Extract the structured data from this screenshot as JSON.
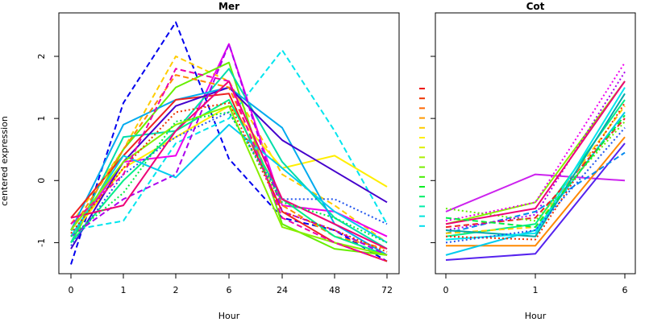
{
  "ylabel": "centered expression",
  "chart_data": [
    {
      "type": "line",
      "title": "Mer",
      "xlabel": "Hour",
      "categories": [
        "0",
        "1",
        "2",
        "6",
        "24",
        "48",
        "72"
      ],
      "yticks": [
        -1,
        0,
        1,
        2
      ],
      "ylim": [
        -1.5,
        2.7
      ],
      "grid": false,
      "series": [
        {
          "color": "#0000ee",
          "dash": "dashed",
          "values": [
            -1.35,
            1.25,
            2.55,
            0.35,
            -0.6,
            -0.8,
            -1.3
          ]
        },
        {
          "color": "#00e5ee",
          "dash": "dashed",
          "values": [
            -0.8,
            -0.65,
            0.6,
            1.0,
            2.1,
            0.8,
            -0.7
          ]
        },
        {
          "color": "#ffcc00",
          "dash": "dashed",
          "values": [
            -0.7,
            0.5,
            2.0,
            1.6,
            0.1,
            -0.4,
            -1.0
          ]
        },
        {
          "color": "#ee00ee",
          "dash": "solid",
          "values": [
            -0.9,
            0.3,
            0.4,
            2.2,
            -0.4,
            -0.5,
            -0.9
          ]
        },
        {
          "color": "#66ee00",
          "dash": "solid",
          "values": [
            -1.0,
            0.5,
            1.5,
            1.9,
            -0.7,
            -1.1,
            -1.2
          ]
        },
        {
          "color": "#ffee00",
          "dash": "solid",
          "values": [
            -0.9,
            0.2,
            0.7,
            1.2,
            0.2,
            0.4,
            -0.1
          ]
        },
        {
          "color": "#00ddaa",
          "dash": "solid",
          "values": [
            -1.0,
            0.7,
            0.8,
            1.8,
            0.3,
            -0.6,
            -1.1
          ]
        },
        {
          "color": "#00aaee",
          "dash": "solid",
          "values": [
            -0.8,
            0.9,
            1.3,
            1.5,
            0.85,
            -0.7,
            -1.2
          ]
        },
        {
          "color": "#ee2222",
          "dash": "solid",
          "values": [
            -0.6,
            0.4,
            1.3,
            1.4,
            -0.5,
            -1.0,
            -1.3
          ]
        },
        {
          "color": "#4400cc",
          "dash": "solid",
          "values": [
            -1.1,
            0.3,
            1.2,
            1.5,
            0.65,
            0.15,
            -0.35
          ]
        },
        {
          "color": "#ff8800",
          "dash": "dashed",
          "values": [
            -0.8,
            0.5,
            1.7,
            1.5,
            -0.4,
            -0.9,
            -1.1
          ]
        },
        {
          "color": "#00ee88",
          "dash": "solid",
          "values": [
            -1.0,
            0.0,
            0.8,
            1.3,
            -0.3,
            -0.9,
            -1.2
          ]
        },
        {
          "color": "#2255ee",
          "dash": "dotted",
          "values": [
            -1.05,
            0.1,
            0.7,
            1.1,
            -0.3,
            -0.3,
            -0.7
          ]
        },
        {
          "color": "#aa00ee",
          "dash": "dashed",
          "values": [
            -0.9,
            -0.3,
            0.1,
            2.2,
            -0.5,
            -0.8,
            -1.2
          ]
        },
        {
          "color": "#00ccee",
          "dash": "solid",
          "values": [
            -0.9,
            0.4,
            0.05,
            0.9,
            0.2,
            -0.5,
            -1.0
          ]
        },
        {
          "color": "#ee0077",
          "dash": "solid",
          "values": [
            -0.6,
            -0.4,
            0.8,
            1.6,
            -0.3,
            -0.7,
            -1.1
          ]
        },
        {
          "color": "#88ee00",
          "dash": "solid",
          "values": [
            -0.8,
            0.3,
            0.9,
            1.2,
            -0.75,
            -1.0,
            -1.2
          ]
        },
        {
          "color": "#ee3300",
          "dash": "dotted",
          "values": [
            -0.85,
            0.2,
            1.1,
            1.25,
            -0.5,
            -0.8,
            -1.15
          ]
        },
        {
          "color": "#ee00aa",
          "dash": "dashed",
          "values": [
            -0.7,
            0.1,
            1.8,
            1.6,
            -0.6,
            -1.0,
            -1.3
          ]
        },
        {
          "color": "#00ee44",
          "dash": "dotted",
          "values": [
            -0.9,
            -0.2,
            0.95,
            1.1,
            -0.35,
            -0.6,
            -1.0
          ]
        }
      ]
    },
    {
      "type": "line",
      "title": "Cot",
      "xlabel": "Hour",
      "categories": [
        "0",
        "1",
        "6"
      ],
      "yticks": [
        -1,
        0,
        1,
        2
      ],
      "ylim": [
        -1.5,
        2.7
      ],
      "grid": false,
      "series": [
        {
          "color": "#cc22ee",
          "dash": "solid",
          "values": [
            -0.5,
            0.1,
            0.0
          ]
        },
        {
          "color": "#5522ee",
          "dash": "solid",
          "values": [
            -1.28,
            -1.18,
            0.6
          ]
        },
        {
          "color": "#ff8800",
          "dash": "solid",
          "values": [
            -1.05,
            -1.05,
            0.7
          ]
        },
        {
          "color": "#88ee00",
          "dash": "solid",
          "values": [
            -0.7,
            -0.35,
            1.6
          ]
        },
        {
          "color": "#0088ee",
          "dash": "dashed",
          "values": [
            -0.85,
            -0.5,
            0.45
          ]
        },
        {
          "color": "#ee00ee",
          "dash": "dotted",
          "values": [
            -0.65,
            -0.35,
            1.9
          ]
        },
        {
          "color": "#00ccee",
          "dash": "solid",
          "values": [
            -1.2,
            -0.8,
            1.1
          ]
        },
        {
          "color": "#00ee88",
          "dash": "solid",
          "values": [
            -0.9,
            -0.7,
            1.3
          ]
        },
        {
          "color": "#ee2222",
          "dash": "dashed",
          "values": [
            -0.75,
            -0.6,
            1.0
          ]
        },
        {
          "color": "#66ee00",
          "dash": "dotted",
          "values": [
            -0.45,
            -0.65,
            0.95
          ]
        },
        {
          "color": "#aa00ee",
          "dash": "dotted",
          "values": [
            -0.8,
            -0.55,
            1.75
          ]
        },
        {
          "color": "#ffcc00",
          "dash": "dashed",
          "values": [
            -0.85,
            -0.75,
            1.2
          ]
        },
        {
          "color": "#00aaaa",
          "dash": "solid",
          "values": [
            -0.8,
            -0.9,
            1.4
          ]
        },
        {
          "color": "#00e5ee",
          "dash": "solid",
          "values": [
            -0.95,
            -0.85,
            1.5
          ]
        },
        {
          "color": "#ee0077",
          "dash": "solid",
          "values": [
            -0.7,
            -0.45,
            1.6
          ]
        },
        {
          "color": "#ee3300",
          "dash": "dotted",
          "values": [
            -0.9,
            -0.95,
            1.25
          ]
        },
        {
          "color": "#2255ee",
          "dash": "dotted",
          "values": [
            -1.0,
            -0.8,
            0.85
          ]
        },
        {
          "color": "#00ee44",
          "dash": "dashed",
          "values": [
            -0.6,
            -0.75,
            1.05
          ]
        }
      ]
    }
  ],
  "legend": {
    "colors": [
      "#ee0000",
      "#ee3300",
      "#ff6600",
      "#ff9900",
      "#ffcc00",
      "#ffee00",
      "#ddee00",
      "#aaee00",
      "#77ee00",
      "#44ee00",
      "#00ee22",
      "#00ee66",
      "#00eeaa",
      "#00e5dd",
      "#00ddee"
    ]
  }
}
